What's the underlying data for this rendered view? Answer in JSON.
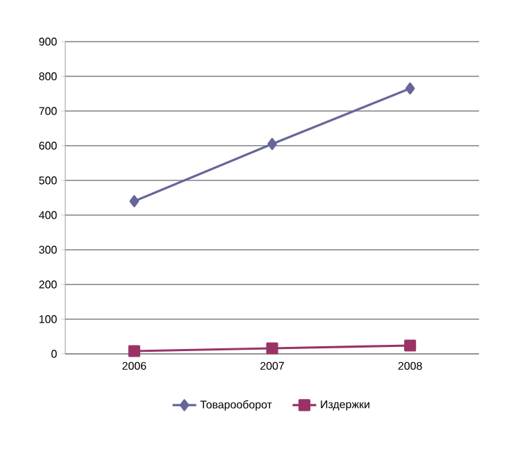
{
  "chart_data": {
    "type": "line",
    "categories": [
      "2006",
      "2007",
      "2008"
    ],
    "series": [
      {
        "name": "Товарооборот",
        "color": "#666699",
        "marker": "diamond",
        "values": [
          440,
          605,
          765
        ]
      },
      {
        "name": "Издержки",
        "color": "#993366",
        "marker": "square",
        "values": [
          8,
          16,
          24
        ]
      }
    ],
    "ylim": [
      0,
      900
    ],
    "yticks": [
      0,
      100,
      200,
      300,
      400,
      500,
      600,
      700,
      800,
      900
    ],
    "grid": "y",
    "legend": "bottom",
    "line_style": "solid"
  }
}
